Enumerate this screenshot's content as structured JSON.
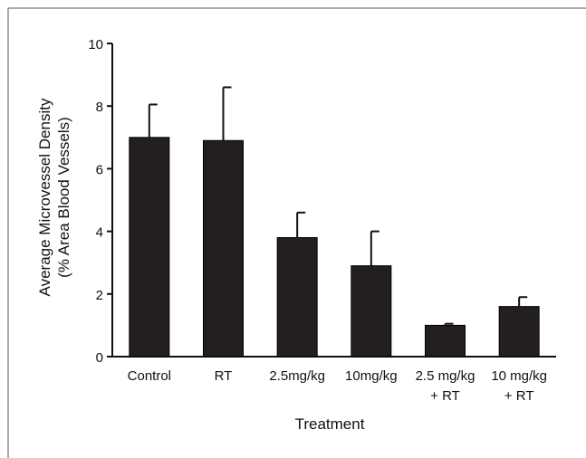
{
  "chart_data": {
    "type": "bar",
    "categories": [
      "Control",
      "RT",
      "2.5mg/kg",
      "10mg/kg",
      "2.5 mg/kg + RT",
      "10 mg/kg + RT"
    ],
    "category_label_lines": [
      [
        "Control"
      ],
      [
        "RT"
      ],
      [
        "2.5mg/kg"
      ],
      [
        "10mg/kg"
      ],
      [
        "2.5 mg/kg",
        "+ RT"
      ],
      [
        "10 mg/kg",
        "+ RT"
      ]
    ],
    "values": [
      7.0,
      6.9,
      3.8,
      2.9,
      1.0,
      1.6
    ],
    "error_upper": [
      1.05,
      1.7,
      0.8,
      1.1,
      0.05,
      0.3
    ],
    "xlabel": "Treatment",
    "ylabel_lines": [
      "Average Microvessel Density",
      "(% Area Blood Vessels)"
    ],
    "ylim": [
      0,
      10
    ],
    "yticks": [
      0,
      2,
      4,
      6,
      8,
      10
    ],
    "grid": false,
    "bar_color": "#231f20"
  }
}
